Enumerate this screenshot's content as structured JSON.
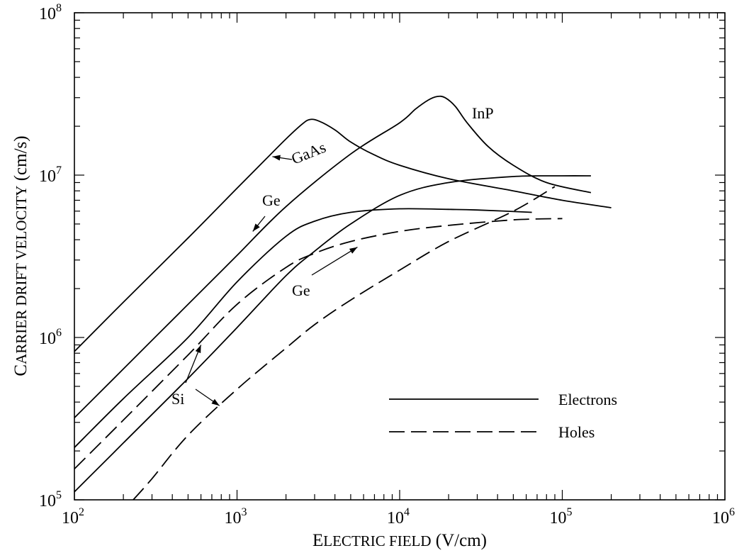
{
  "chart_data": {
    "type": "line",
    "title": "",
    "x_scale": "log",
    "y_scale": "log",
    "xlim": [
      100,
      1000000
    ],
    "ylim": [
      100000,
      100000000
    ],
    "grid": false,
    "x_ticks": [
      {
        "value": 100,
        "mant": "10",
        "exp": "2"
      },
      {
        "value": 1000,
        "mant": "10",
        "exp": "3"
      },
      {
        "value": 10000,
        "mant": "10",
        "exp": "4"
      },
      {
        "value": 100000,
        "mant": "10",
        "exp": "5"
      },
      {
        "value": 1000000,
        "mant": "10",
        "exp": "6"
      }
    ],
    "y_ticks": [
      {
        "value": 100000,
        "mant": "10",
        "exp": "5"
      },
      {
        "value": 1000000,
        "mant": "10",
        "exp": "6"
      },
      {
        "value": 10000000,
        "mant": "10",
        "exp": "7"
      },
      {
        "value": 100000000,
        "mant": "10",
        "exp": "8"
      }
    ],
    "xlabel": {
      "parts": [
        [
          "E",
          true
        ],
        [
          "LECTRIC FIELD",
          false
        ],
        [
          " (V/cm)",
          true
        ]
      ]
    },
    "ylabel": {
      "parts": [
        [
          "C",
          true
        ],
        [
          "ARRIER DRIFT VELOCITY",
          false
        ],
        [
          " (cm/s)",
          true
        ]
      ]
    },
    "legend": {
      "position": "bottom-right",
      "entries": [
        {
          "label": "Electrons",
          "style": "solid"
        },
        {
          "label": "Holes",
          "style": "dashed"
        }
      ]
    },
    "series": [
      {
        "material": "GaAs",
        "carrier": "electrons",
        "style": "solid",
        "x": [
          100,
          200,
          500,
          1000,
          1500,
          2000,
          2500,
          2800,
          3200,
          4000,
          5000,
          7000,
          10000,
          20000,
          50000,
          100000,
          200000
        ],
        "y": [
          820000,
          1650000,
          4100000,
          8300000,
          12500000,
          16700000,
          20500000,
          22000000,
          21500000,
          19000000,
          16000000,
          13300000,
          11500000,
          9500000,
          8000000,
          7000000,
          6300000
        ]
      },
      {
        "material": "InP",
        "carrier": "electrons",
        "style": "solid",
        "x": [
          100,
          200,
          500,
          1000,
          2000,
          5000,
          10000,
          12500,
          15000,
          17000,
          19000,
          22000,
          26000,
          35000,
          50000,
          80000,
          150000
        ],
        "y": [
          320000,
          640000,
          1600000,
          3200000,
          6400000,
          13500000,
          21000000,
          25500000,
          29000000,
          30500000,
          30000000,
          26500000,
          21000000,
          15000000,
          11500000,
          9000000,
          7800000
        ]
      },
      {
        "material": "Ge",
        "carrier": "electrons",
        "style": "solid",
        "x": [
          100,
          200,
          500,
          1000,
          2000,
          3000,
          5000,
          10000,
          20000,
          30000,
          65000
        ],
        "y": [
          210000,
          420000,
          1000000,
          2200000,
          4200000,
          5200000,
          5900000,
          6200000,
          6150000,
          6100000,
          5900000
        ]
      },
      {
        "material": "Si",
        "carrier": "electrons",
        "style": "solid",
        "x": [
          100,
          200,
          500,
          1000,
          2000,
          3000,
          5000,
          10000,
          20000,
          50000,
          100000,
          150000
        ],
        "y": [
          112000,
          224000,
          560000,
          1150000,
          2400000,
          3400000,
          5000000,
          7500000,
          9000000,
          9800000,
          9900000,
          9900000
        ]
      },
      {
        "material": "Ge",
        "carrier": "holes",
        "style": "dashed",
        "x": [
          100,
          200,
          500,
          1000,
          2000,
          3000,
          5000,
          10000,
          20000,
          50000,
          100000
        ],
        "y": [
          155000,
          310000,
          780000,
          1600000,
          2700000,
          3300000,
          3900000,
          4500000,
          4900000,
          5300000,
          5400000
        ]
      },
      {
        "material": "Si",
        "carrier": "holes",
        "style": "dashed",
        "x": [
          230,
          300,
          500,
          1000,
          2000,
          3000,
          5000,
          10000,
          20000,
          50000,
          90000
        ],
        "y": [
          100000,
          135000,
          250000,
          480000,
          860000,
          1200000,
          1700000,
          2600000,
          3900000,
          6000000,
          8500000
        ]
      }
    ],
    "annotations": [
      {
        "text": "GaAs",
        "arrow_to": {
          "x": 1650,
          "y": 13000000
        }
      },
      {
        "text": "InP",
        "arrow_to": null
      },
      {
        "text": "Ge",
        "arrow_to": {
          "x": 1250,
          "y": 4500000
        }
      },
      {
        "text": "Ge",
        "arrow_to": {
          "x": 5500,
          "y": 3600000
        }
      },
      {
        "text": "Si",
        "arrow_to": {
          "x": 600,
          "y": 900000
        }
      },
      {
        "text": "Si",
        "arrow_to": {
          "x": 780,
          "y": 380000
        }
      }
    ]
  }
}
